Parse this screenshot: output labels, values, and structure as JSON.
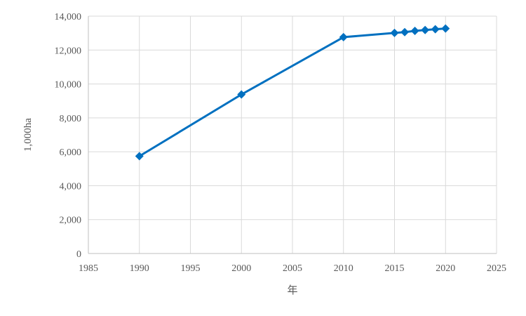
{
  "chart_data": {
    "type": "line",
    "title": "",
    "xlabel": "年",
    "ylabel": "1,000ha",
    "xlim": [
      1985,
      2025
    ],
    "ylim": [
      0,
      14000
    ],
    "x_ticks": [
      1985,
      1990,
      1995,
      2000,
      2005,
      2010,
      2015,
      2020,
      2025
    ],
    "y_ticks": [
      0,
      2000,
      4000,
      6000,
      8000,
      10000,
      12000,
      14000
    ],
    "grid": true,
    "legend": "none",
    "series": [
      {
        "color": "#0070c0",
        "marker": "diamond",
        "x": [
          1990,
          2000,
          2010,
          2015,
          2016,
          2017,
          2018,
          2019,
          2020
        ],
        "y": [
          5740,
          9380,
          12760,
          13010,
          13060,
          13130,
          13180,
          13230,
          13270
        ]
      }
    ]
  }
}
